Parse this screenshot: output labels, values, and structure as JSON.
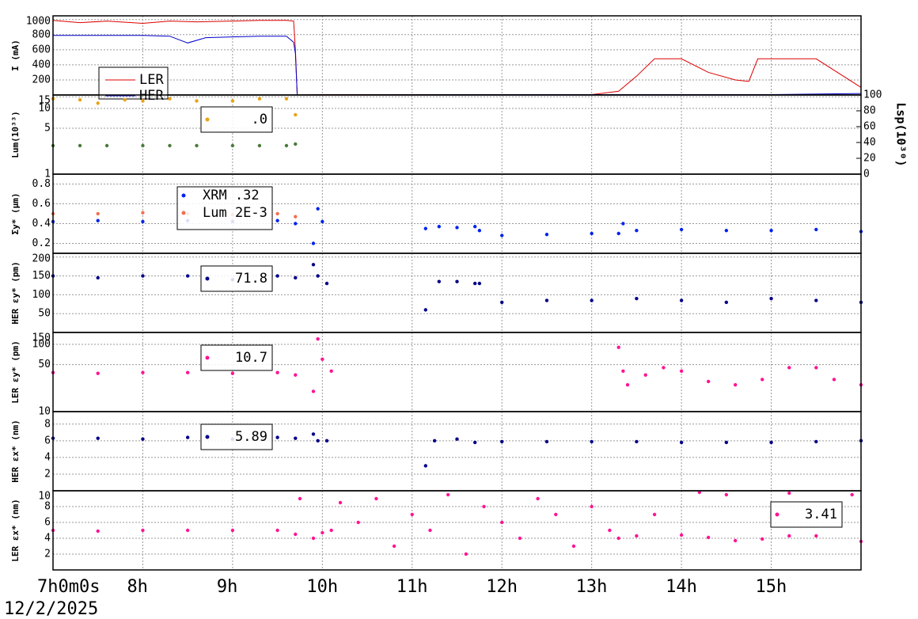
{
  "chart_data": [
    {
      "type": "line",
      "ylabel": "I (mA)",
      "xlim": [
        7,
        16
      ],
      "ylim": [
        0,
        1050
      ],
      "yticks": [
        200,
        400,
        600,
        800,
        1000
      ],
      "grid": true,
      "series": [
        {
          "name": "LER",
          "color": "#dd0000",
          "x": [
            7,
            7.3,
            7.6,
            8,
            8.3,
            8.6,
            9,
            9.3,
            9.6,
            9.68,
            9.7,
            9.72,
            10,
            11,
            12,
            13,
            13.3,
            13.5,
            13.7,
            14,
            14.3,
            14.6,
            14.75,
            14.85,
            15,
            15.5,
            16
          ],
          "values": [
            990,
            960,
            980,
            950,
            980,
            970,
            980,
            990,
            990,
            980,
            600,
            0,
            5,
            5,
            5,
            5,
            50,
            250,
            480,
            480,
            300,
            200,
            180,
            480,
            480,
            480,
            100
          ]
        },
        {
          "name": "HER",
          "color": "#0000cc",
          "x": [
            7,
            7.3,
            7.6,
            8,
            8.3,
            8.5,
            8.7,
            9,
            9.3,
            9.6,
            9.68,
            9.7,
            9.72,
            12,
            15,
            16
          ],
          "values": [
            790,
            790,
            790,
            790,
            780,
            690,
            760,
            770,
            780,
            780,
            700,
            550,
            0,
            5,
            5,
            20
          ]
        }
      ]
    },
    {
      "type": "scatter",
      "ylabel": "Lum(10³³)",
      "y2label": "Lsp(10³⁰)",
      "xlim": [
        7,
        16
      ],
      "ylim": [
        1,
        16
      ],
      "yscale": "log",
      "yticks": [
        1,
        5,
        10,
        15
      ],
      "y2lim": [
        0,
        100
      ],
      "y2ticks": [
        0,
        20,
        40,
        60,
        80,
        100
      ],
      "grid": true,
      "series": [
        {
          "name": ".0",
          "color": "#e8a317",
          "x": [
            7,
            7.3,
            7.5,
            7.8,
            8,
            8.3,
            8.6,
            9,
            9.3,
            9.6,
            9.7
          ],
          "values": [
            14,
            13.5,
            12,
            13.5,
            13,
            14,
            13,
            13,
            14,
            14,
            8
          ]
        },
        {
          "color": "#4a7a3a",
          "axis": "y2",
          "x": [
            7,
            7.3,
            7.6,
            8,
            8.3,
            8.6,
            9,
            9.3,
            9.6,
            9.7
          ],
          "values": [
            36,
            36,
            36,
            36,
            36,
            36,
            36,
            36,
            36,
            38
          ]
        }
      ]
    },
    {
      "type": "scatter",
      "ylabel": "Σy* (μm)",
      "xlim": [
        7,
        16
      ],
      "ylim": [
        0.1,
        0.9
      ],
      "yticks": [
        0.2,
        0.4,
        0.6,
        0.8
      ],
      "grid": true,
      "series": [
        {
          "name": "XRM  .32",
          "color": "#0022ee",
          "x": [
            7,
            7.5,
            8,
            8.5,
            9,
            9.5,
            9.7,
            9.9,
            9.95,
            10,
            11.15,
            11.3,
            11.5,
            11.7,
            11.75,
            12,
            12.5,
            13,
            13.3,
            13.35,
            13.5,
            14,
            14.5,
            15,
            15.5,
            16
          ],
          "values": [
            0.42,
            0.43,
            0.42,
            0.43,
            0.42,
            0.43,
            0.4,
            0.2,
            0.55,
            0.42,
            0.35,
            0.37,
            0.36,
            0.37,
            0.33,
            0.28,
            0.29,
            0.3,
            0.3,
            0.4,
            0.33,
            0.34,
            0.33,
            0.33,
            0.34,
            0.32
          ]
        },
        {
          "name": "Lum 2E-3",
          "color": "#f07050",
          "x": [
            7,
            7.5,
            8,
            8.5,
            9,
            9.5,
            9.7
          ],
          "values": [
            0.5,
            0.5,
            0.51,
            0.5,
            0.49,
            0.5,
            0.47
          ]
        }
      ]
    },
    {
      "type": "scatter",
      "ylabel": "HER εy* (pm)",
      "xlim": [
        7,
        16
      ],
      "ylim": [
        0,
        210
      ],
      "yticks": [
        50,
        100,
        150,
        200
      ],
      "grid": true,
      "series": [
        {
          "name": "71.8",
          "color": "#000088",
          "x": [
            7,
            7.5,
            8,
            8.5,
            9,
            9.5,
            9.7,
            9.9,
            9.95,
            10.05,
            11.15,
            11.3,
            11.5,
            11.7,
            11.75,
            12,
            12.5,
            13,
            13.5,
            14,
            14.5,
            15,
            15.5,
            16
          ],
          "values": [
            150,
            145,
            150,
            150,
            140,
            150,
            145,
            180,
            150,
            130,
            60,
            135,
            135,
            130,
            130,
            80,
            85,
            85,
            90,
            85,
            80,
            90,
            85,
            80
          ]
        }
      ]
    },
    {
      "type": "scatter",
      "ylabel": "LER εy* (pm)",
      "xlim": [
        7,
        16
      ],
      "ylim": [
        10,
        150
      ],
      "yscale": "log",
      "yticks": [
        10,
        50,
        100,
        150
      ],
      "grid": true,
      "series": [
        {
          "name": "10.7",
          "color": "#ff1493",
          "x": [
            7,
            7.5,
            8,
            8.5,
            9,
            9.5,
            9.7,
            9.9,
            9.95,
            10.0,
            10.1,
            13.3,
            13.35,
            13.4,
            13.6,
            13.8,
            14.0,
            14.3,
            14.6,
            14.9,
            15.2,
            15.5,
            15.7,
            16
          ],
          "values": [
            38,
            37,
            38,
            38,
            37,
            38,
            35,
            20,
            120,
            60,
            40,
            90,
            40,
            25,
            35,
            45,
            40,
            28,
            25,
            30,
            45,
            45,
            30,
            25
          ]
        }
      ]
    },
    {
      "type": "scatter",
      "ylabel": "HER εx* (nm)",
      "xlim": [
        7,
        16
      ],
      "ylim": [
        0,
        9.5
      ],
      "yticks": [
        2,
        4,
        6,
        8
      ],
      "grid": true,
      "series": [
        {
          "name": "5.89",
          "color": "#000088",
          "x": [
            7,
            7.5,
            8,
            8.5,
            9,
            9.5,
            9.7,
            9.9,
            9.95,
            10.05,
            11.15,
            11.25,
            11.5,
            11.7,
            12,
            12.5,
            13,
            13.5,
            14,
            14.5,
            15,
            15.5,
            16
          ],
          "values": [
            6.3,
            6.3,
            6.2,
            6.4,
            6.2,
            6.4,
            6.3,
            6.8,
            6,
            6,
            3,
            6,
            6.2,
            5.8,
            5.9,
            5.9,
            5.9,
            5.9,
            5.8,
            5.8,
            5.8,
            5.9,
            6
          ]
        }
      ]
    },
    {
      "type": "scatter",
      "ylabel": "LER εx* (nm)",
      "xlim": [
        7,
        16
      ],
      "ylim": [
        0,
        10
      ],
      "yticks": [
        2,
        4,
        6,
        8,
        10
      ],
      "grid": true,
      "xticks": [
        {
          "value": 7,
          "label": "7h0m0s"
        },
        {
          "value": 8,
          "label": "8h"
        },
        {
          "value": 9,
          "label": "9h"
        },
        {
          "value": 10,
          "label": "10h"
        },
        {
          "value": 11,
          "label": "11h"
        },
        {
          "value": 12,
          "label": "12h"
        },
        {
          "value": 13,
          "label": "13h"
        },
        {
          "value": 14,
          "label": "14h"
        },
        {
          "value": 15,
          "label": "15h"
        }
      ],
      "date": "12/2/2025",
      "series": [
        {
          "name": "3.41",
          "color": "#ff1493",
          "x": [
            7,
            7.5,
            8,
            8.5,
            9,
            9.5,
            9.7,
            9.9,
            10,
            10.1,
            13.3,
            13.5,
            14,
            14.3,
            14.6,
            14.9,
            15.2,
            15.5,
            16
          ],
          "values": [
            5,
            4.9,
            5,
            5,
            5,
            5,
            4.5,
            4,
            4.7,
            5,
            4,
            4.3,
            4.4,
            4.1,
            3.7,
            3.9,
            4.3,
            4.3,
            3.6
          ]
        },
        {
          "color": "#ff1493",
          "x": [
            9.75,
            10.2,
            10.4,
            10.6,
            10.8,
            11,
            11.2,
            11.4,
            11.6,
            11.8,
            12,
            12.2,
            12.4,
            12.6,
            12.8,
            13,
            13.2,
            13.7,
            14.2,
            14.5,
            15.2,
            15.9
          ],
          "values": [
            9,
            8.5,
            6,
            9,
            3,
            7,
            5,
            9.5,
            2,
            8,
            6,
            4,
            9,
            7,
            3,
            8,
            5,
            7,
            9.8,
            9.5,
            9.7,
            9.5
          ]
        }
      ]
    }
  ]
}
